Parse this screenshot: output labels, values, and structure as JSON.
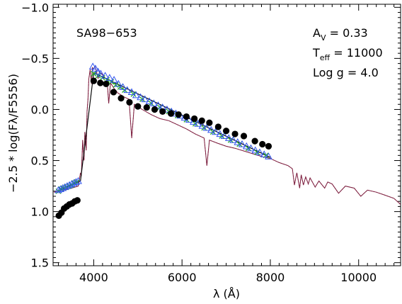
{
  "chart_data": {
    "type": "scatter",
    "xlabel": "λ (Å)",
    "ylabel": "−2.5 * log(Fλ/F5556)",
    "xlim": [
      3080,
      10950
    ],
    "ylim": [
      1.53,
      -1.03
    ],
    "y_inverted": true,
    "x_ticks": [
      {
        "value": 4000,
        "label": "4000"
      },
      {
        "value": 6000,
        "label": "6000"
      },
      {
        "value": 8000,
        "label": "8000"
      },
      {
        "value": 10000,
        "label": "10000"
      }
    ],
    "y_ticks": [
      {
        "value": -1.0,
        "label": "−1.0"
      },
      {
        "value": -0.5,
        "label": "−0.5"
      },
      {
        "value": 0.0,
        "label": "0.0"
      },
      {
        "value": 0.5,
        "label": "0.5"
      },
      {
        "value": 1.0,
        "label": "1.0"
      },
      {
        "value": 1.5,
        "label": "1.5"
      }
    ],
    "annotations": {
      "star": "SA98−653",
      "av_main": "A",
      "av_sub": "V",
      "av_value": " = 0.33",
      "teff_main": "T",
      "teff_sub": "eff",
      "teff_value": " = 11000",
      "logg": "Log g =  4.0"
    },
    "grid": false,
    "legend": "none",
    "colors": {
      "model": "#7a1f3d",
      "model_dotted": "#d0508a",
      "black_dots": "#000000",
      "triangles": "#3355ee",
      "crosses": "#22aa22",
      "fit_line": "#0a0a0a"
    },
    "series": [
      {
        "kind": "model_spectrum",
        "x": [
          3100,
          3300,
          3500,
          3650,
          3700,
          3720,
          3750,
          3780,
          3800,
          3830,
          3850,
          3870,
          3890,
          3920,
          3950,
          3970,
          4000,
          4030,
          4060,
          4100,
          4130,
          4180,
          4250,
          4300,
          4340,
          4380,
          4470,
          4550,
          4700,
          4800,
          4861,
          4920,
          5100,
          5300,
          5500,
          5700,
          5900,
          6100,
          6300,
          6500,
          6563,
          6620,
          6800,
          7000,
          7200,
          7500,
          7800,
          8000,
          8200,
          8400,
          8500,
          8545,
          8600,
          8665,
          8700,
          8750,
          8800,
          8860,
          8900,
          9015,
          9100,
          9230,
          9300,
          9400,
          9546,
          9700,
          9900,
          10049,
          10200,
          10400,
          10600,
          10800,
          10950
        ],
        "y": [
          0.81,
          0.79,
          0.77,
          0.75,
          0.62,
          0.65,
          0.3,
          0.5,
          0.22,
          0.4,
          0.02,
          -0.1,
          -0.3,
          -0.39,
          -0.25,
          -0.41,
          -0.4,
          -0.42,
          -0.38,
          -0.3,
          -0.37,
          -0.35,
          -0.31,
          -0.3,
          -0.06,
          -0.26,
          -0.2,
          -0.16,
          -0.12,
          -0.1,
          0.28,
          -0.05,
          0.0,
          0.05,
          0.09,
          0.11,
          0.15,
          0.19,
          0.24,
          0.28,
          0.55,
          0.3,
          0.33,
          0.36,
          0.38,
          0.42,
          0.46,
          0.48,
          0.52,
          0.55,
          0.58,
          0.74,
          0.62,
          0.77,
          0.64,
          0.74,
          0.66,
          0.73,
          0.67,
          0.76,
          0.7,
          0.77,
          0.71,
          0.73,
          0.82,
          0.75,
          0.77,
          0.85,
          0.79,
          0.81,
          0.84,
          0.87,
          0.93
        ]
      },
      {
        "kind": "black_dots",
        "x": [
          3210,
          3270,
          3330,
          3390,
          3450,
          3510,
          3570,
          3630,
          4000,
          4150,
          4280,
          4450,
          4620,
          4810,
          5000,
          5200,
          5380,
          5560,
          5750,
          5920,
          6100,
          6280,
          6450,
          6620,
          6820,
          7000,
          7200,
          7400,
          7650,
          7820,
          7960
        ],
        "y": [
          1.04,
          1.01,
          0.97,
          0.95,
          0.93,
          0.92,
          0.9,
          0.89,
          -0.28,
          -0.26,
          -0.25,
          -0.17,
          -0.11,
          -0.07,
          -0.03,
          -0.02,
          0.0,
          0.02,
          0.04,
          0.05,
          0.07,
          0.09,
          0.11,
          0.13,
          0.17,
          0.21,
          0.24,
          0.26,
          0.31,
          0.34,
          0.36
        ]
      },
      {
        "kind": "triangles",
        "x": [
          3200,
          3250,
          3300,
          3350,
          3400,
          3450,
          3500,
          3550,
          3600,
          3650,
          3980,
          4040,
          4100,
          4160,
          4260,
          4360,
          4460,
          4560,
          4660,
          4760,
          4860,
          4960,
          5060,
          5160,
          5260,
          5360,
          5460,
          5560,
          5660,
          5760,
          5860,
          5960,
          6060,
          6160,
          6260,
          6360,
          6460,
          6560,
          6660,
          6760,
          6860,
          6960,
          7060,
          7160,
          7260,
          7360,
          7460,
          7560,
          7660,
          7760,
          7860,
          7960
        ],
        "y": [
          0.79,
          0.78,
          0.77,
          0.76,
          0.75,
          0.74,
          0.73,
          0.72,
          0.71,
          0.7,
          -0.42,
          -0.4,
          -0.37,
          -0.35,
          -0.33,
          -0.31,
          -0.29,
          -0.25,
          -0.22,
          -0.19,
          -0.17,
          -0.14,
          -0.12,
          -0.1,
          -0.08,
          -0.06,
          -0.04,
          -0.02,
          0.0,
          0.02,
          0.04,
          0.06,
          0.08,
          0.1,
          0.12,
          0.14,
          0.16,
          0.18,
          0.2,
          0.22,
          0.24,
          0.26,
          0.28,
          0.3,
          0.32,
          0.34,
          0.36,
          0.38,
          0.4,
          0.42,
          0.44,
          0.46
        ]
      },
      {
        "kind": "crosses",
        "x": [
          3200,
          3260,
          3320,
          3380,
          3440,
          3500,
          3560,
          3620,
          4000,
          4100,
          4200,
          4300,
          4400,
          4500,
          4600,
          4700,
          4900,
          5100,
          5300,
          5500,
          5700,
          5900,
          6100,
          6300,
          6500,
          6700,
          6900,
          7100,
          7300,
          7500,
          7700,
          7900
        ],
        "y": [
          0.8,
          0.78,
          0.77,
          0.76,
          0.75,
          0.74,
          0.72,
          0.71,
          -0.35,
          -0.33,
          -0.31,
          -0.29,
          -0.27,
          -0.24,
          -0.22,
          -0.19,
          -0.15,
          -0.1,
          -0.06,
          -0.02,
          0.02,
          0.06,
          0.1,
          0.14,
          0.18,
          0.22,
          0.26,
          0.3,
          0.34,
          0.38,
          0.42,
          0.45
        ]
      },
      {
        "kind": "fit_line",
        "x": [
          3200,
          3700,
          4000,
          8000
        ],
        "y": [
          0.8,
          0.7,
          -0.36,
          0.47
        ]
      }
    ]
  }
}
